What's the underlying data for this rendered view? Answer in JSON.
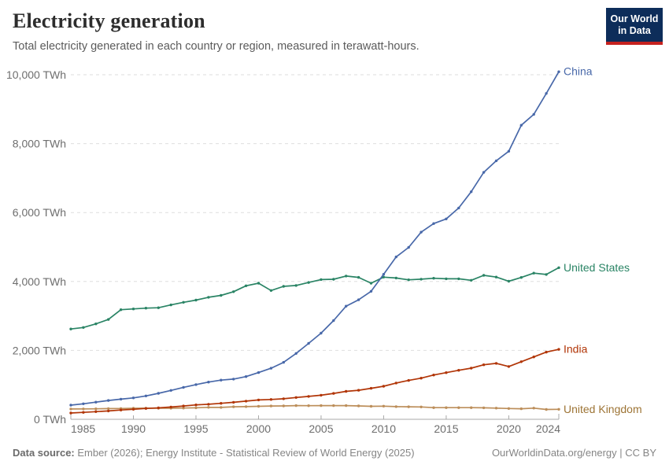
{
  "header": {
    "title": "Electricity generation",
    "subtitle": "Total electricity generated in each country or region, measured in terawatt-hours."
  },
  "logo": {
    "line1": "Our World",
    "line2": "in Data",
    "bg_color": "#0d2d5a",
    "bar_color": "#c5221f"
  },
  "footer": {
    "source_label": "Data source:",
    "source_text": " Ember (2026); Energy Institute - Statistical Review of World Energy (2025)",
    "link_text": "OurWorldinData.org/energy | CC BY"
  },
  "chart_data": {
    "type": "line",
    "title": "Electricity generation",
    "ylabel": "TWh",
    "xlim": [
      1985,
      2024
    ],
    "ylim": [
      0,
      10000
    ],
    "grid": true,
    "legend_position": "end-of-line",
    "x": [
      1985,
      1986,
      1987,
      1988,
      1989,
      1990,
      1991,
      1992,
      1993,
      1994,
      1995,
      1996,
      1997,
      1998,
      1999,
      2000,
      2001,
      2002,
      2003,
      2004,
      2005,
      2006,
      2007,
      2008,
      2009,
      2010,
      2011,
      2012,
      2013,
      2014,
      2015,
      2016,
      2017,
      2018,
      2019,
      2020,
      2021,
      2022,
      2023,
      2024
    ],
    "x_ticks": [
      1985,
      1990,
      1995,
      2000,
      2005,
      2010,
      2015,
      2020,
      2024
    ],
    "x_tick_labels": [
      "1985",
      "1990",
      "1995",
      "2000",
      "2005",
      "2010",
      "2015",
      "2020",
      "2024"
    ],
    "y_ticks": [
      0,
      2000,
      4000,
      6000,
      8000,
      10000
    ],
    "y_tick_labels": [
      "0 TWh",
      "2,000 TWh",
      "4,000 TWh",
      "6,000 TWh",
      "8,000 TWh",
      "10,000 TWh"
    ],
    "grid_color": "#dedede",
    "axis_color": "#a8a8a8",
    "tick_label_color": "#6e6e6e",
    "series": [
      {
        "name": "China",
        "color": "#4868a9",
        "label_color": "#4868a9",
        "values": [
          411,
          450,
          497,
          545,
          585,
          621,
          678,
          754,
          839,
          928,
          1007,
          1081,
          1136,
          1167,
          1239,
          1356,
          1481,
          1654,
          1911,
          2203,
          2500,
          2866,
          3282,
          3467,
          3715,
          4207,
          4713,
          4988,
          5432,
          5680,
          5815,
          6133,
          6604,
          7166,
          7503,
          7779,
          8534,
          8849,
          9456,
          10087
        ]
      },
      {
        "name": "United States",
        "color": "#2a8465",
        "label_color": "#2a8465",
        "values": [
          2621,
          2665,
          2770,
          2897,
          3180,
          3203,
          3226,
          3237,
          3320,
          3396,
          3460,
          3540,
          3595,
          3703,
          3874,
          3950,
          3737,
          3858,
          3883,
          3971,
          4055,
          4065,
          4157,
          4119,
          3950,
          4125,
          4100,
          4048,
          4066,
          4093,
          4078,
          4077,
          4034,
          4178,
          4128,
          4007,
          4116,
          4243,
          4204,
          4400
        ]
      },
      {
        "name": "India",
        "color": "#b13507",
        "label_color": "#b13507",
        "values": [
          183,
          202,
          221,
          241,
          269,
          289,
          315,
          332,
          356,
          385,
          417,
          435,
          463,
          494,
          527,
          561,
          576,
          597,
          633,
          665,
          699,
          752,
          811,
          842,
          899,
          960,
          1053,
          1128,
          1193,
          1286,
          1354,
          1423,
          1484,
          1583,
          1623,
          1533,
          1671,
          1811,
          1949,
          2030
        ]
      },
      {
        "name": "United Kingdom",
        "color": "#bc8e5a",
        "label_color": "#9d7435",
        "values": [
          298,
          302,
          303,
          310,
          312,
          320,
          323,
          321,
          323,
          326,
          334,
          347,
          345,
          362,
          368,
          377,
          385,
          387,
          398,
          394,
          398,
          398,
          397,
          389,
          377,
          382,
          368,
          364,
          359,
          339,
          338,
          339,
          338,
          333,
          325,
          312,
          305,
          325,
          286,
          291
        ]
      }
    ]
  }
}
